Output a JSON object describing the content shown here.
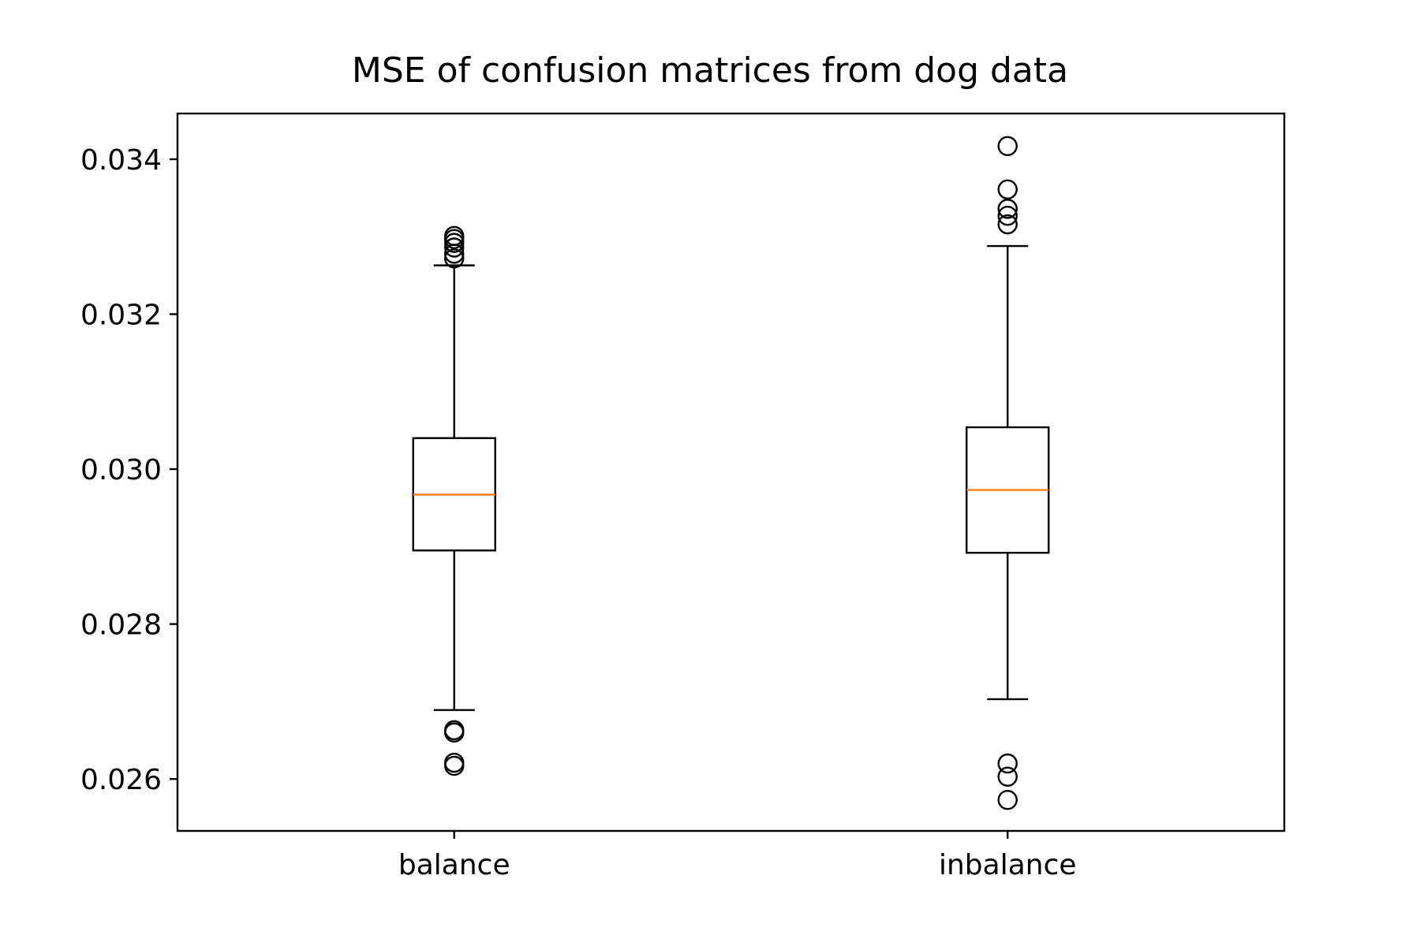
{
  "chart_data": {
    "type": "box",
    "title": "MSE of confusion matrices from dog data",
    "xlabel": "",
    "ylabel": "",
    "ylim": [
      0.02533,
      0.03459
    ],
    "yticks": [
      0.026,
      0.028,
      0.03,
      0.032,
      0.034
    ],
    "ytick_labels": [
      "0.026",
      "0.028",
      "0.030",
      "0.032",
      "0.034"
    ],
    "grid": false,
    "categories": [
      "balance",
      "inbalance"
    ],
    "boxes": [
      {
        "name": "balance",
        "whisker_low": 0.02689,
        "q1": 0.02895,
        "median": 0.02967,
        "q3": 0.0304,
        "whisker_high": 0.03263,
        "outliers": [
          0.02617,
          0.02621,
          0.0266,
          0.02663,
          0.03272,
          0.03278,
          0.03286,
          0.03292,
          0.03297,
          0.03301
        ]
      },
      {
        "name": "inbalance",
        "whisker_low": 0.02703,
        "q1": 0.02892,
        "median": 0.02973,
        "q3": 0.03054,
        "whisker_high": 0.03288,
        "outliers": [
          0.02573,
          0.02603,
          0.0262,
          0.03316,
          0.03327,
          0.03336,
          0.03361,
          0.03417
        ]
      }
    ],
    "colors": {
      "box": "#000000",
      "median": "#ff7f0e",
      "flier": "#000000"
    }
  }
}
